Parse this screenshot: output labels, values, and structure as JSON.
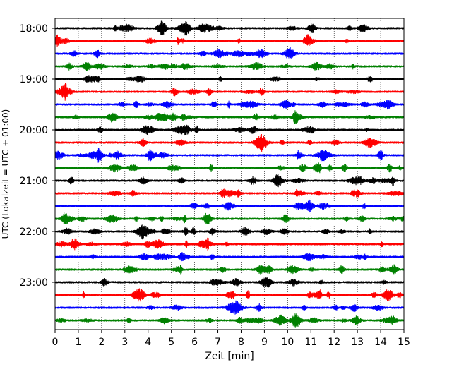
{
  "chart_data": {
    "type": "line",
    "title": "",
    "xlabel": "Zeit  [min]",
    "ylabel": "UTC (Lokalzeit = UTC + 01:00)",
    "xlim": [
      0,
      15
    ],
    "x_ticks": [
      0,
      1,
      2,
      3,
      4,
      5,
      6,
      7,
      8,
      9,
      10,
      11,
      12,
      13,
      14,
      15
    ],
    "y_tick_labels": [
      "18:00",
      "19:00",
      "20:00",
      "21:00",
      "22:00",
      "23:00"
    ],
    "grid": "vertical dotted lines at each minute",
    "trace_interval_minutes": 15,
    "traces_start": "18:00",
    "trace_count": 24,
    "trace_colors": [
      "#000000",
      "#ff0000",
      "#0000ff",
      "#008000"
    ],
    "series": [
      {
        "start": "18:00",
        "color": "#000000"
      },
      {
        "start": "18:15",
        "color": "#ff0000"
      },
      {
        "start": "18:30",
        "color": "#0000ff"
      },
      {
        "start": "18:45",
        "color": "#008000"
      },
      {
        "start": "19:00",
        "color": "#000000"
      },
      {
        "start": "19:15",
        "color": "#ff0000"
      },
      {
        "start": "19:30",
        "color": "#0000ff"
      },
      {
        "start": "19:45",
        "color": "#008000"
      },
      {
        "start": "20:00",
        "color": "#000000"
      },
      {
        "start": "20:15",
        "color": "#ff0000"
      },
      {
        "start": "20:30",
        "color": "#0000ff"
      },
      {
        "start": "20:45",
        "color": "#008000"
      },
      {
        "start": "21:00",
        "color": "#000000"
      },
      {
        "start": "21:15",
        "color": "#ff0000"
      },
      {
        "start": "21:30",
        "color": "#0000ff"
      },
      {
        "start": "21:45",
        "color": "#008000"
      },
      {
        "start": "22:00",
        "color": "#000000"
      },
      {
        "start": "22:15",
        "color": "#ff0000"
      },
      {
        "start": "22:30",
        "color": "#0000ff"
      },
      {
        "start": "22:45",
        "color": "#008000"
      },
      {
        "start": "23:00",
        "color": "#000000"
      },
      {
        "start": "23:15",
        "color": "#ff0000"
      },
      {
        "start": "23:30",
        "color": "#0000ff"
      },
      {
        "start": "23:45",
        "color": "#008000"
      }
    ]
  }
}
